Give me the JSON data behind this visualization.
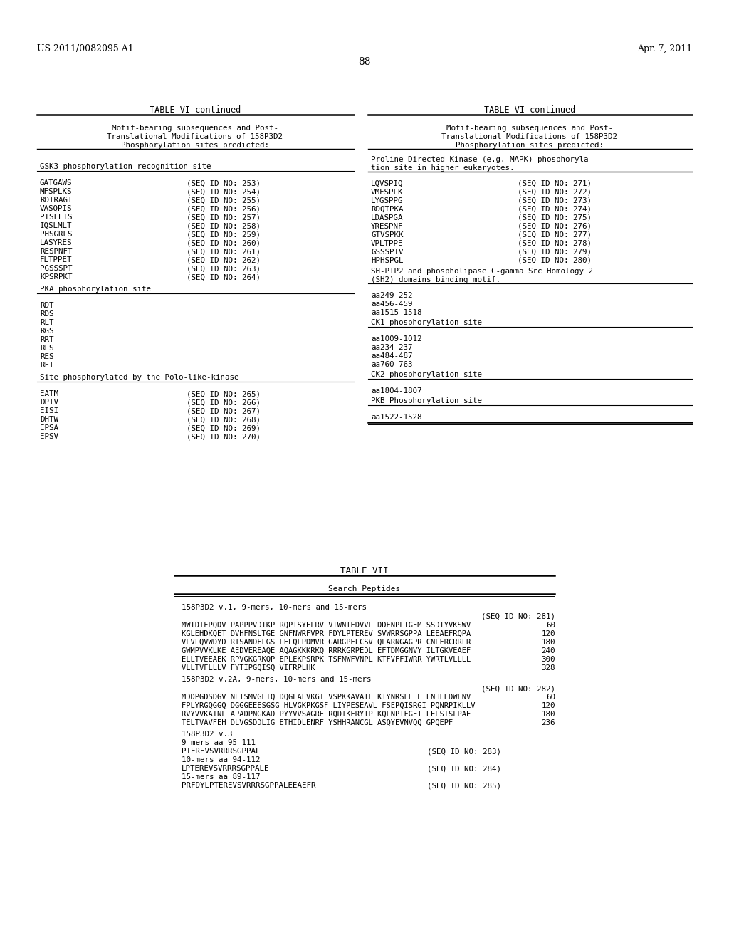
{
  "bg_color": "#ffffff",
  "header_left": "US 2011/0082095 A1",
  "header_right": "Apr. 7, 2011",
  "page_number": "88",
  "figsize": [
    10.24,
    13.2
  ],
  "dpi": 100
}
